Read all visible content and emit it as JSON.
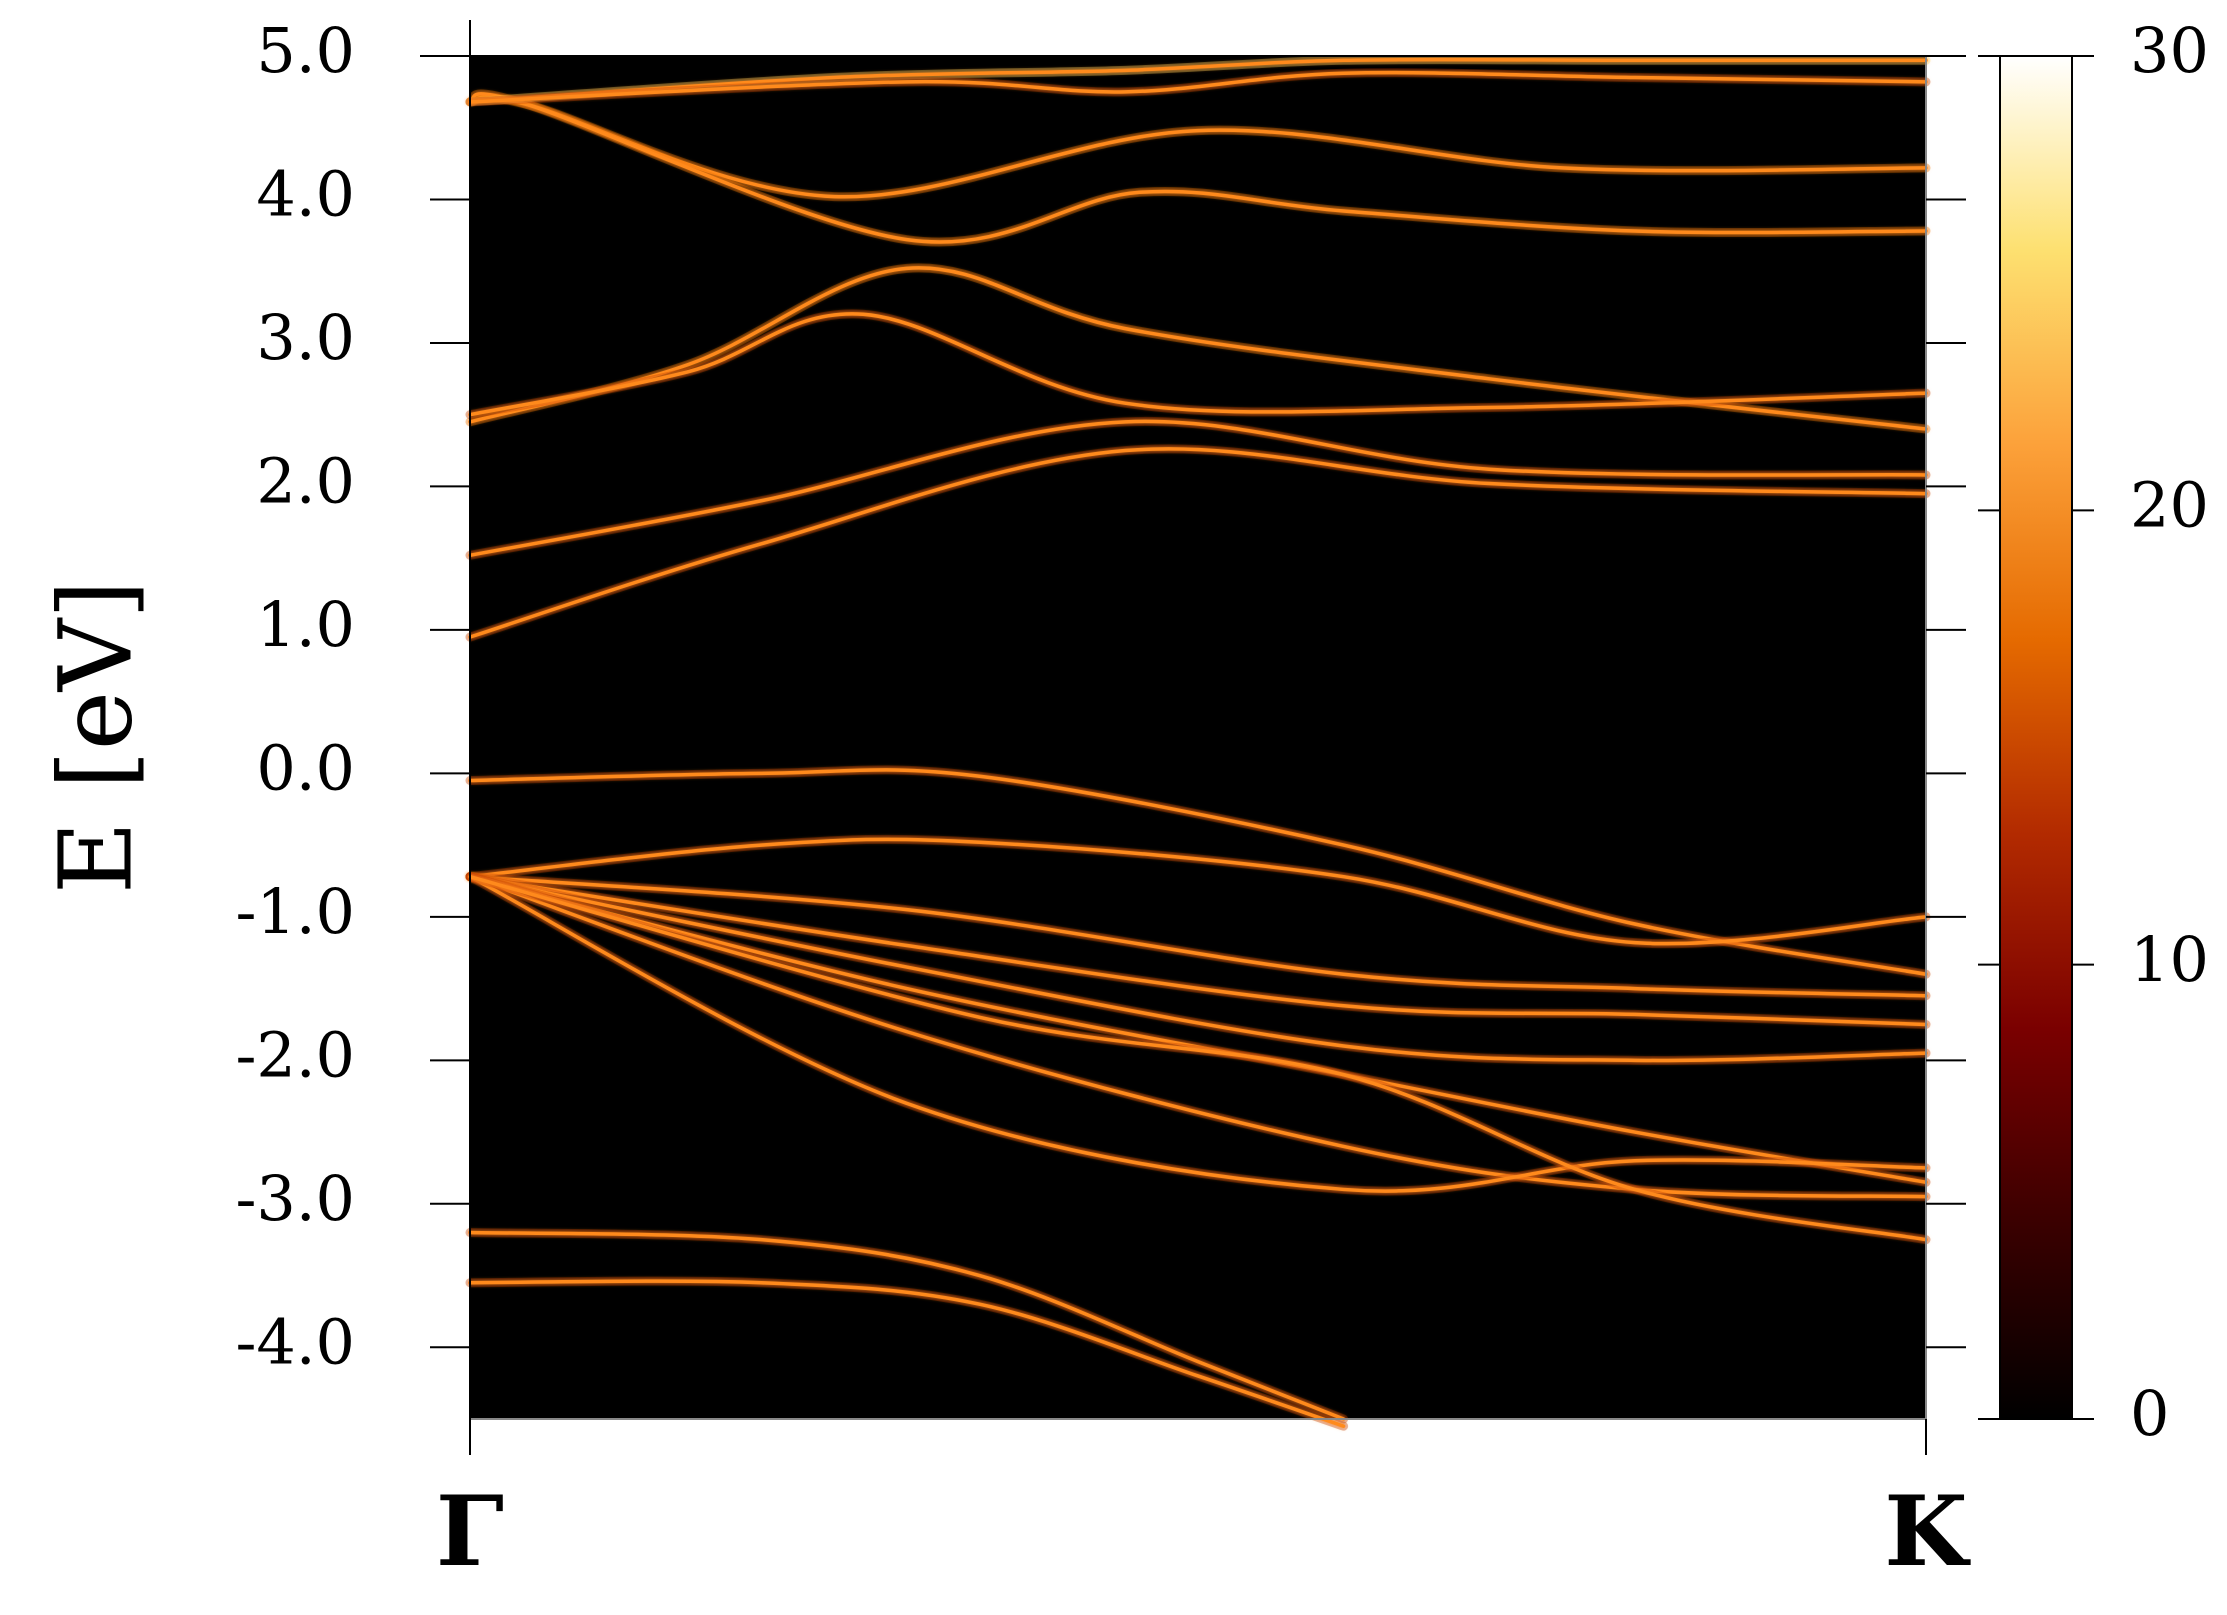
{
  "chart_data": {
    "type": "heatmap",
    "title": "",
    "xlabel": "",
    "ylabel": "E [eV]",
    "ylim": [
      -4.5,
      5.0
    ],
    "xlim": [
      0,
      1
    ],
    "x_ticks": [
      {
        "label": "Γ",
        "value": 0
      },
      {
        "label": "K",
        "value": 1
      }
    ],
    "y_ticks": [
      {
        "label": "5.0",
        "value": 5.0
      },
      {
        "label": "4.0",
        "value": 4.0
      },
      {
        "label": "3.0",
        "value": 3.0
      },
      {
        "label": "2.0",
        "value": 2.0
      },
      {
        "label": "1.0",
        "value": 1.0
      },
      {
        "label": "0.0",
        "value": 0.0
      },
      {
        "label": "-1.0",
        "value": -1.0
      },
      {
        "label": "-2.0",
        "value": -2.0
      },
      {
        "label": "-3.0",
        "value": -3.0
      },
      {
        "label": "-4.0",
        "value": -4.0
      }
    ],
    "colorbar": {
      "range": [
        0,
        30
      ],
      "ticks": [
        {
          "label": "0",
          "value": 0
        },
        {
          "label": "10",
          "value": 10
        },
        {
          "label": "20",
          "value": 20
        },
        {
          "label": "30",
          "value": 30
        }
      ],
      "colors": [
        "#000000",
        "#3a0000",
        "#7a0000",
        "#b22a00",
        "#e56a00",
        "#fca13a",
        "#fde070",
        "#ffffff"
      ]
    },
    "background_color": "#000000",
    "band_color": "#ff8a1e",
    "grid": false,
    "series": [
      {
        "x": [
          0,
          0.04,
          0.25,
          0.5,
          0.75,
          1.0
        ],
        "y": [
          4.68,
          4.66,
          4.02,
          4.48,
          4.22,
          4.22
        ],
        "intensity": 16
      },
      {
        "x": [
          0,
          0.04,
          0.3,
          0.46,
          0.6,
          0.8,
          1.0
        ],
        "y": [
          4.68,
          4.66,
          3.72,
          4.05,
          3.92,
          3.78,
          3.78
        ],
        "intensity": 16
      },
      {
        "x": [
          0,
          0.25,
          0.45,
          0.6,
          0.8,
          1.0
        ],
        "y": [
          4.68,
          4.85,
          4.9,
          4.97,
          4.97,
          4.97
        ],
        "intensity": 24
      },
      {
        "x": [
          0,
          0.3,
          0.45,
          0.6,
          0.8,
          1.0
        ],
        "y": [
          4.68,
          4.82,
          4.75,
          4.88,
          4.85,
          4.82
        ],
        "intensity": 14
      },
      {
        "x": [
          0,
          0.15,
          0.3,
          0.45,
          0.7,
          1.0
        ],
        "y": [
          2.45,
          2.85,
          3.52,
          3.1,
          2.75,
          2.4
        ],
        "intensity": 15
      },
      {
        "x": [
          0,
          0.15,
          0.27,
          0.45,
          0.7,
          1.0
        ],
        "y": [
          2.5,
          2.8,
          3.2,
          2.58,
          2.55,
          2.65
        ],
        "intensity": 14
      },
      {
        "x": [
          0,
          0.2,
          0.45,
          0.7,
          1.0
        ],
        "y": [
          1.52,
          1.9,
          2.45,
          2.12,
          2.08
        ],
        "intensity": 13
      },
      {
        "x": [
          0,
          0.2,
          0.45,
          0.7,
          1.0
        ],
        "y": [
          0.95,
          1.6,
          2.25,
          2.02,
          1.95
        ],
        "intensity": 13
      },
      {
        "x": [
          0,
          0.2,
          0.35,
          0.6,
          0.8,
          1.0
        ],
        "y": [
          -0.05,
          0.0,
          -0.02,
          -0.5,
          -1.05,
          -1.4
        ],
        "intensity": 12
      },
      {
        "x": [
          0,
          0.2,
          0.35,
          0.6,
          0.8,
          1.0
        ],
        "y": [
          -0.72,
          -0.5,
          -0.48,
          -0.72,
          -1.18,
          -1.0
        ],
        "intensity": 12
      },
      {
        "x": [
          0,
          0.3,
          0.6,
          0.8,
          1.0
        ],
        "y": [
          -0.72,
          -0.95,
          -1.4,
          -1.5,
          -1.55
        ],
        "intensity": 14
      },
      {
        "x": [
          0,
          0.3,
          0.6,
          0.8,
          1.0
        ],
        "y": [
          -0.72,
          -1.2,
          -1.62,
          -1.68,
          -1.75
        ],
        "intensity": 14
      },
      {
        "x": [
          0,
          0.3,
          0.6,
          0.8,
          1.0
        ],
        "y": [
          -0.72,
          -1.35,
          -1.9,
          -2.0,
          -1.95
        ],
        "intensity": 13
      },
      {
        "x": [
          0,
          0.3,
          0.6,
          0.8,
          1.0
        ],
        "y": [
          -0.72,
          -1.5,
          -2.1,
          -2.5,
          -2.85
        ],
        "intensity": 13
      },
      {
        "x": [
          0,
          0.3,
          0.6,
          0.8,
          1.0
        ],
        "y": [
          -0.72,
          -1.8,
          -2.6,
          -2.9,
          -2.95
        ],
        "intensity": 13
      },
      {
        "x": [
          0,
          0.3,
          0.6,
          0.8,
          1.0
        ],
        "y": [
          -0.72,
          -2.3,
          -2.9,
          -2.7,
          -2.75
        ],
        "intensity": 12
      },
      {
        "x": [
          0,
          0.35,
          0.6,
          0.8,
          1.0
        ],
        "y": [
          -0.72,
          -1.7,
          -2.1,
          -2.9,
          -3.25
        ],
        "intensity": 12
      },
      {
        "x": [
          0,
          0.2,
          0.35,
          0.5,
          0.6
        ],
        "y": [
          -3.2,
          -3.25,
          -3.5,
          -4.1,
          -4.5
        ],
        "intensity": 13
      },
      {
        "x": [
          0,
          0.2,
          0.35,
          0.5,
          0.6
        ],
        "y": [
          -3.55,
          -3.55,
          -3.7,
          -4.2,
          -4.55
        ],
        "intensity": 13
      }
    ]
  }
}
